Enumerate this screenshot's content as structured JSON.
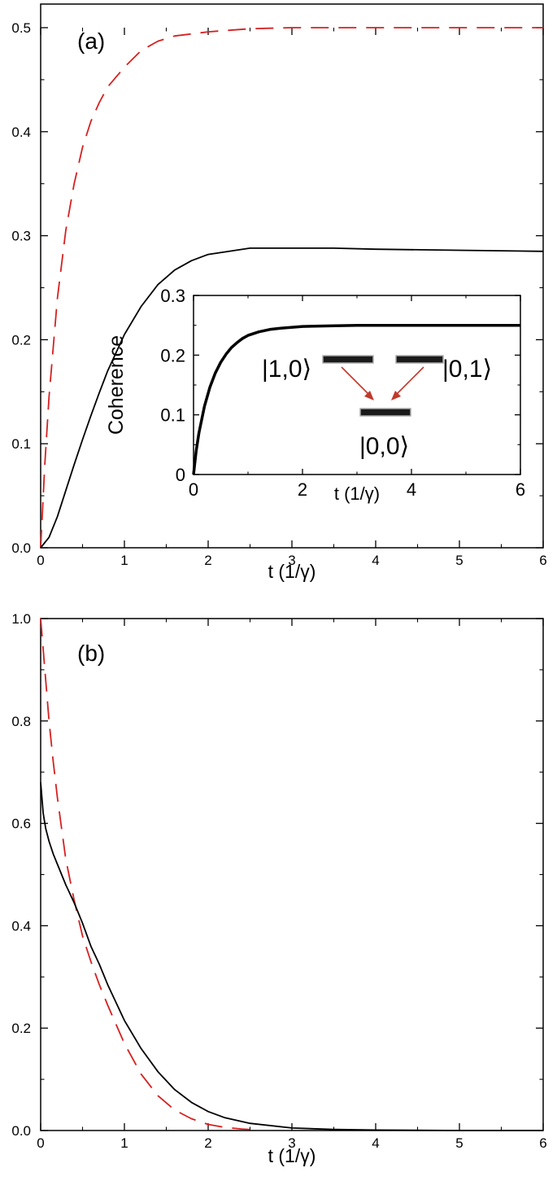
{
  "chart_data": [
    {
      "panel_label": "(a)",
      "type": "line",
      "xlabel": "t (1/γ)",
      "ylabel": "",
      "xlim": [
        0,
        6
      ],
      "ylim": [
        0,
        0.5
      ],
      "xticks": [
        0,
        1,
        2,
        3,
        4,
        5,
        6
      ],
      "xtick_labels": [
        "0",
        "1",
        "2",
        "3",
        "4",
        "5",
        "6"
      ],
      "yticks": [
        0.0,
        0.1,
        0.2,
        0.3,
        0.4,
        0.5
      ],
      "ytick_labels": [
        "0.0",
        "0.1",
        "0.2",
        "0.3",
        "0.4",
        "0.5"
      ],
      "grid": false,
      "series": [
        {
          "style": "dashed",
          "color": "#d62020",
          "x": [
            0,
            0.05,
            0.1,
            0.2,
            0.3,
            0.4,
            0.5,
            0.6,
            0.7,
            0.8,
            1.0,
            1.2,
            1.4,
            1.6,
            1.8,
            2.0,
            2.5,
            3.0,
            4.0,
            5.0,
            6.0
          ],
          "y": [
            0,
            0.08,
            0.145,
            0.24,
            0.305,
            0.35,
            0.385,
            0.41,
            0.428,
            0.443,
            0.462,
            0.478,
            0.487,
            0.492,
            0.494,
            0.496,
            0.499,
            0.5,
            0.5,
            0.5,
            0.5
          ]
        },
        {
          "style": "solid",
          "color": "#000000",
          "x": [
            0,
            0.1,
            0.2,
            0.3,
            0.4,
            0.5,
            0.6,
            0.7,
            0.8,
            1.0,
            1.2,
            1.4,
            1.6,
            1.8,
            2.0,
            2.5,
            3.0,
            3.5,
            4.0,
            5.0,
            6.0
          ],
          "y": [
            0,
            0.01,
            0.03,
            0.055,
            0.08,
            0.104,
            0.127,
            0.149,
            0.17,
            0.205,
            0.232,
            0.253,
            0.267,
            0.276,
            0.282,
            0.288,
            0.288,
            0.288,
            0.287,
            0.286,
            0.285
          ]
        }
      ],
      "inset": {
        "type": "line",
        "xlabel": "t (1/γ)",
        "ylabel": "Coherence",
        "xlim": [
          0,
          6
        ],
        "ylim": [
          0,
          0.3
        ],
        "xticks": [
          0,
          2,
          4,
          6
        ],
        "xtick_labels": [
          "0",
          "2",
          "4",
          "6"
        ],
        "yticks": [
          0,
          0.1,
          0.2,
          0.3
        ],
        "ytick_labels": [
          "0",
          "0.1",
          "0.2",
          "0.3"
        ],
        "series": [
          {
            "style": "solid",
            "color": "#000000",
            "x": [
              0,
              0.05,
              0.1,
              0.2,
              0.3,
              0.4,
              0.5,
              0.6,
              0.7,
              0.8,
              0.9,
              1.0,
              1.2,
              1.4,
              1.6,
              2.0,
              2.5,
              3.0,
              4.0,
              5.0,
              6.0
            ],
            "y": [
              0,
              0.04,
              0.07,
              0.114,
              0.146,
              0.17,
              0.188,
              0.202,
              0.213,
              0.221,
              0.228,
              0.233,
              0.239,
              0.243,
              0.245,
              0.248,
              0.249,
              0.25,
              0.25,
              0.25,
              0.25
            ]
          }
        ],
        "diagram": {
          "kets": [
            "|1,0⟩",
            "|0,1⟩",
            "|0,0⟩"
          ],
          "level_color": "#1a1a1a",
          "arrow_color": "#c0392b"
        }
      }
    },
    {
      "panel_label": "(b)",
      "type": "line",
      "xlabel": "t (1/γ)",
      "ylabel": "",
      "xlim": [
        0,
        6
      ],
      "ylim": [
        0,
        1.0
      ],
      "xticks": [
        0,
        1,
        2,
        3,
        4,
        5,
        6
      ],
      "xtick_labels": [
        "0",
        "1",
        "2",
        "3",
        "4",
        "5",
        "6"
      ],
      "yticks": [
        0.0,
        0.2,
        0.4,
        0.6,
        0.8,
        1.0
      ],
      "ytick_labels": [
        "0.0",
        "0.2",
        "0.4",
        "0.6",
        "0.8",
        "1.0"
      ],
      "grid": false,
      "series": [
        {
          "style": "dashed",
          "color": "#d62020",
          "x": [
            0,
            0.03,
            0.06,
            0.1,
            0.15,
            0.2,
            0.3,
            0.4,
            0.5,
            0.6,
            0.7,
            0.8,
            1.0,
            1.2,
            1.4,
            1.6,
            1.8,
            2.0,
            2.2,
            2.4,
            2.6
          ],
          "y": [
            1.0,
            0.94,
            0.88,
            0.8,
            0.72,
            0.65,
            0.53,
            0.45,
            0.38,
            0.33,
            0.285,
            0.245,
            0.17,
            0.11,
            0.068,
            0.04,
            0.023,
            0.012,
            0.006,
            0.003,
            0.001
          ]
        },
        {
          "style": "solid",
          "color": "#000000",
          "x": [
            0,
            0.03,
            0.06,
            0.1,
            0.15,
            0.2,
            0.3,
            0.4,
            0.5,
            0.6,
            0.7,
            0.8,
            0.9,
            1.0,
            1.2,
            1.4,
            1.6,
            1.8,
            2.0,
            2.2,
            2.5,
            3.0,
            3.5,
            4.0,
            5.0,
            6.0
          ],
          "y": [
            0.68,
            0.62,
            0.59,
            0.565,
            0.54,
            0.52,
            0.48,
            0.445,
            0.405,
            0.36,
            0.325,
            0.285,
            0.25,
            0.215,
            0.16,
            0.115,
            0.08,
            0.055,
            0.037,
            0.025,
            0.014,
            0.005,
            0.002,
            0.001,
            0.0,
            0.0
          ]
        }
      ]
    }
  ]
}
